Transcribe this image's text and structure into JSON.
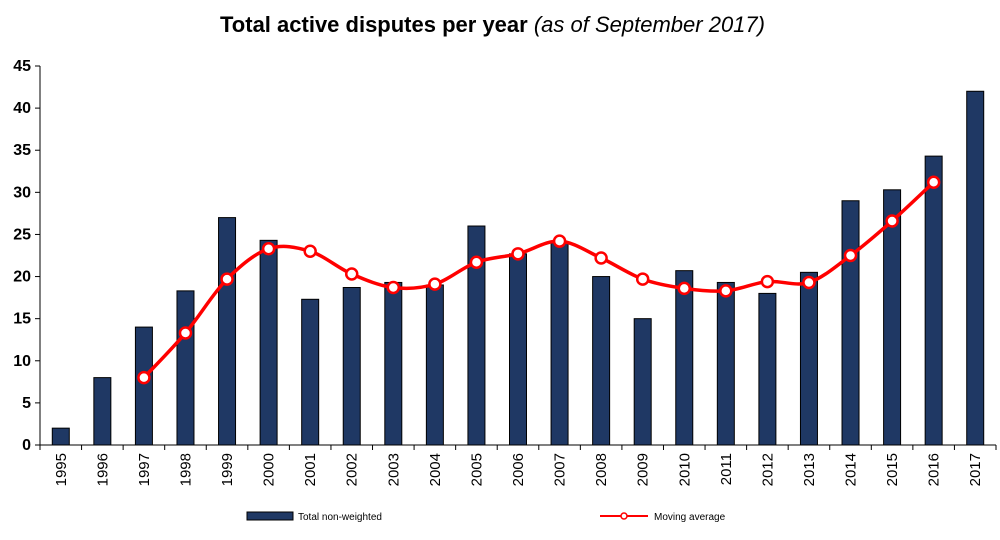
{
  "chart_data": {
    "type": "bar",
    "title": "Total active disputes per year",
    "subtitle": "(as of  September 2017)",
    "xlabel": "",
    "ylabel": "",
    "ylim": [
      0,
      45
    ],
    "yticks": [
      0,
      5,
      10,
      15,
      20,
      25,
      30,
      35,
      40,
      45
    ],
    "grid": false,
    "legend": "bottom",
    "categories": [
      "1995",
      "1996",
      "1997",
      "1998",
      "1999",
      "2000",
      "2001",
      "2002",
      "2003",
      "2004",
      "2005",
      "2006",
      "2007",
      "2008",
      "2009",
      "2010",
      "2011",
      "2012",
      "2013",
      "2014",
      "2015",
      "2016",
      "2017"
    ],
    "series": [
      {
        "name": "Total non-weighted",
        "type": "bar",
        "color": "#1f3864",
        "values": [
          2,
          8,
          14,
          18.3,
          27,
          24.3,
          17.3,
          18.7,
          19.3,
          19,
          26,
          22.7,
          24,
          20,
          15,
          20.7,
          19.3,
          18,
          20.5,
          29,
          30.3,
          34.3,
          42
        ]
      },
      {
        "name": "Moving average",
        "type": "line",
        "color": "#ff0000",
        "values": [
          null,
          null,
          8,
          13.3,
          19.7,
          23.3,
          23,
          20.3,
          18.7,
          19.1,
          21.7,
          22.7,
          24.2,
          22.2,
          19.7,
          18.6,
          18.3,
          19.4,
          19.3,
          22.5,
          26.6,
          31.2,
          null
        ]
      }
    ]
  }
}
